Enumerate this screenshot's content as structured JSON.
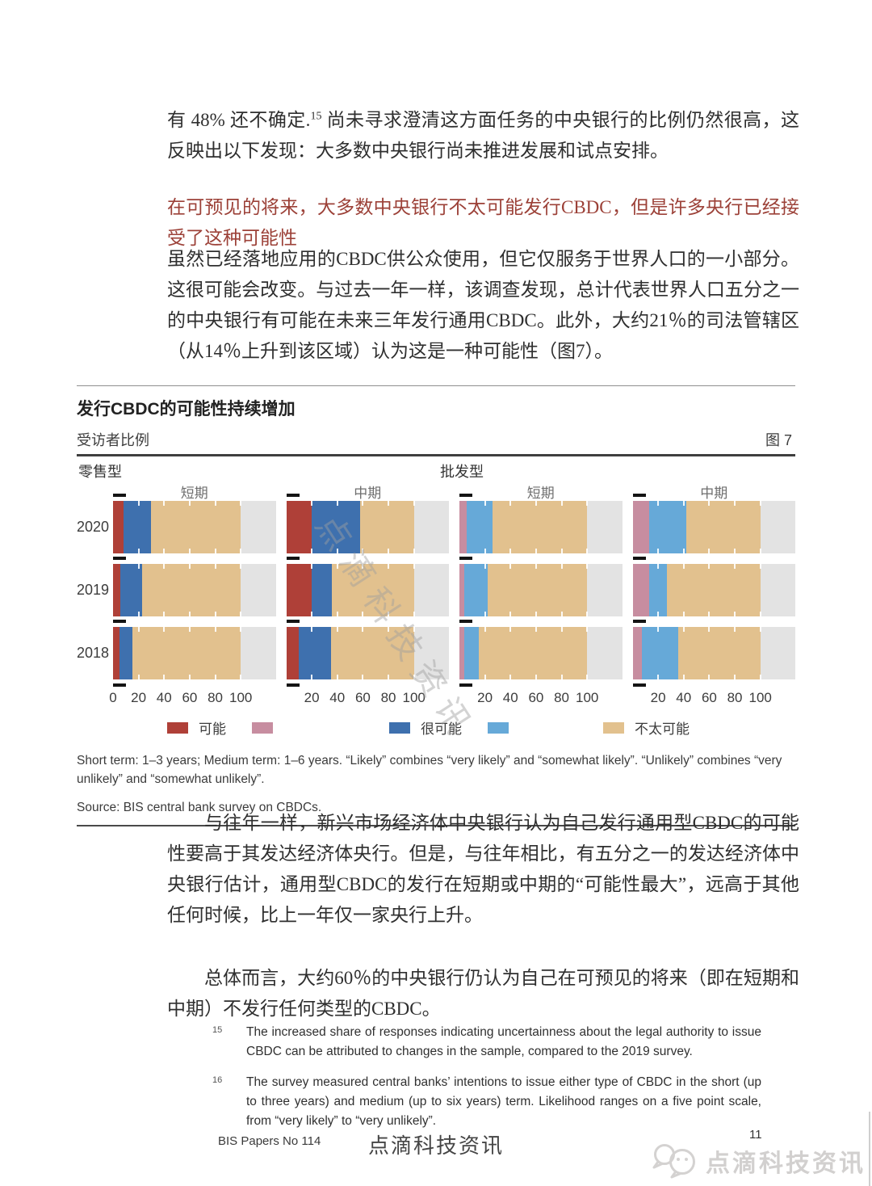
{
  "intro": {
    "pre": "有 48% 还不确定.",
    "sup": "15",
    "post": " 尚未寻求澄清这方面任务的中央银行的比例仍然很高，这反映出以下发现：大多数中央银行尚未推进发展和试点安排。"
  },
  "section": {
    "heading": "在可预见的将来，大多数中央银行不太可能发行CBDC，但是许多央行已经接受了这种可能性",
    "body": "虽然已经落地应用的CBDC供公众使用，但它仅服务于世界人口的一小部分。这很可能会改变。与过去一年一样，该调查发现，总计代表世界人口五分之一的中央银行有可能在未来三年发行通用CBDC。此外，大约21％的司法管辖区（从14％上升到该区域）认为这是一种可能性（图7）。"
  },
  "figure": {
    "title": "发行CBDC的可能性持续增加",
    "unit_label": "受访者比例",
    "figure_label": "图 7",
    "group_left": "零售型",
    "group_right": "批发型",
    "watermark": "点滴科技资讯",
    "note": "Short term: 1–3 years; Medium term: 1–6 years. “Likely” combines “very likely” and “somewhat likely”. “Unlikely” combines “very unlikely” and “somewhat unlikely”.",
    "source": "Source: BIS central bank survey on CBDCs."
  },
  "chart_data": {
    "type": "bar",
    "stacked": true,
    "orientation": "horizontal",
    "x_range": [
      0,
      100
    ],
    "categories": [
      "2020",
      "2019",
      "2018"
    ],
    "series_names": [
      "可能",
      "很可能",
      "不太可能"
    ],
    "legend": [
      {
        "label": "可能",
        "swatches": [
          "#af4038",
          "#c78da0"
        ]
      },
      {
        "label": "很可能",
        "swatches": [
          "#3e70ae",
          "#66a9d8"
        ]
      },
      {
        "label": "不太可能",
        "swatches": [
          "#e2c18e"
        ]
      }
    ],
    "palettes": {
      "retail": [
        "#af4038",
        "#3e70ae",
        "#e2c18e"
      ],
      "wholesale": [
        "#c78da0",
        "#66a9d8",
        "#e2c18e"
      ]
    },
    "panel_background": "#e3e3e3",
    "panels": [
      {
        "group": "零售型",
        "header": "短期",
        "palette": "retail",
        "x_ticks": [
          0,
          20,
          40,
          60,
          80,
          100
        ],
        "rows": [
          [
            8,
            22,
            70
          ],
          [
            6,
            17,
            77
          ],
          [
            5,
            10,
            85
          ]
        ]
      },
      {
        "group": "零售型",
        "header": "中期",
        "palette": "retail",
        "x_ticks": [
          20,
          40,
          60,
          80,
          100
        ],
        "rows": [
          [
            20,
            38,
            42
          ],
          [
            20,
            16,
            64
          ],
          [
            10,
            25,
            65
          ]
        ]
      },
      {
        "group": "批发型",
        "header": "短期",
        "palette": "wholesale",
        "x_ticks": [
          20,
          40,
          60,
          80,
          100
        ],
        "rows": [
          [
            6,
            20,
            74
          ],
          [
            4,
            18,
            78
          ],
          [
            4,
            11,
            85
          ]
        ]
      },
      {
        "group": "批发型",
        "header": "中期",
        "palette": "wholesale",
        "x_ticks": [
          20,
          40,
          60,
          80,
          100
        ],
        "rows": [
          [
            13,
            29,
            58
          ],
          [
            13,
            14,
            73
          ],
          [
            7,
            29,
            64
          ]
        ]
      }
    ]
  },
  "after": {
    "para1": "与往年一样，新兴市场经济体中央银行认为自己发行通用型CBDC的可能性要高于其发达经济体央行。但是，与往年相比，有五分之一的发达经济体中央银行估计，通用型CBDC的发行在短期或中期的“可能性最大”，远高于其他任何时候，比上一年仅一家央行上升。",
    "para2": "总体而言，大约60％的中央银行仍认为自己在可预见的将来（即在短期和中期）不发行任何类型的CBDC。"
  },
  "footnotes": [
    {
      "num": "15",
      "text": "The increased share of responses indicating uncertainness about the legal authority to issue CBDC can be attributed to changes in the sample, compared to the 2019 survey."
    },
    {
      "num": "16",
      "text": "The survey measured central banks’ intentions to issue either type of CBDC in the short (up to three years) and medium (up to six years) term. Likelihood ranges on a five point scale, from “very likely” to “very unlikely”."
    }
  ],
  "footer": {
    "left": "BIS Papers No 114",
    "center": "点滴科技资讯",
    "page_number": "11",
    "corner_logo": "点滴科技资讯"
  }
}
